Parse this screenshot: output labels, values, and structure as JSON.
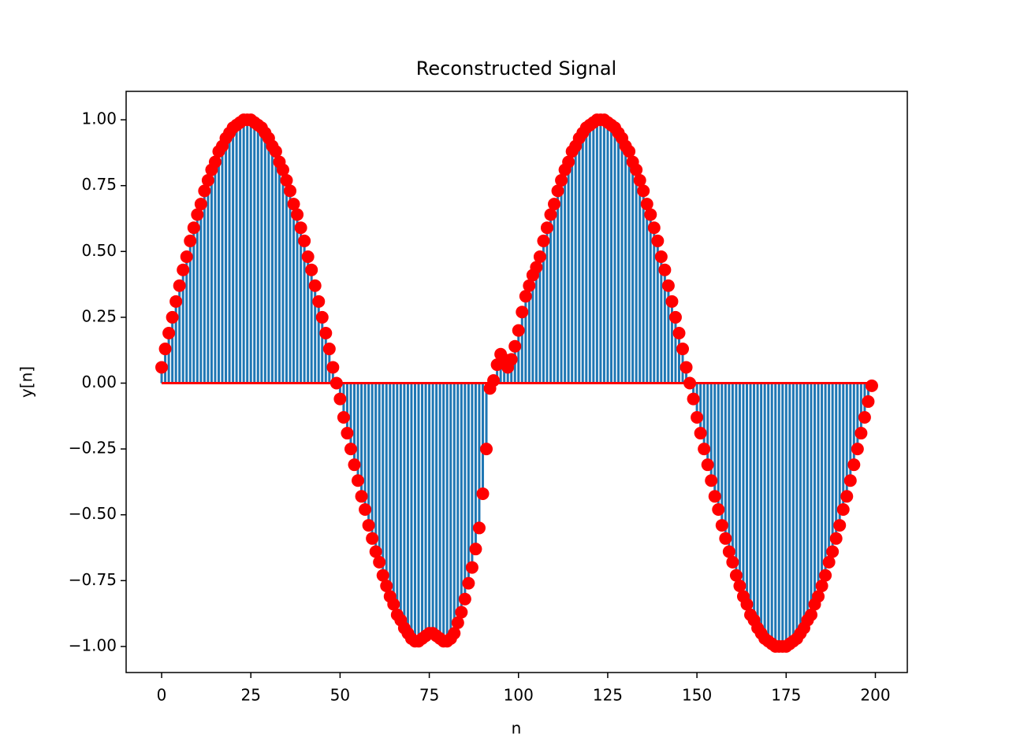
{
  "chart_data": {
    "type": "stem",
    "title": "Reconstructed Signal",
    "x_label": "n",
    "y_label": "y[n]",
    "stem_color": "#1f77b4",
    "marker_color": "#ff0000",
    "baseline_color": "#ff0000",
    "x": [
      0,
      1,
      2,
      3,
      4,
      5,
      6,
      7,
      8,
      9,
      10,
      11,
      12,
      13,
      14,
      15,
      16,
      17,
      18,
      19,
      20,
      21,
      22,
      23,
      24,
      25,
      26,
      27,
      28,
      29,
      30,
      31,
      32,
      33,
      34,
      35,
      36,
      37,
      38,
      39,
      40,
      41,
      42,
      43,
      44,
      45,
      46,
      47,
      48,
      49,
      50,
      51,
      52,
      53,
      54,
      55,
      56,
      57,
      58,
      59,
      60,
      61,
      62,
      63,
      64,
      65,
      66,
      67,
      68,
      69,
      70,
      71,
      72,
      73,
      74,
      75,
      76,
      77,
      78,
      79,
      80,
      81,
      82,
      83,
      84,
      85,
      86,
      87,
      88,
      89,
      90,
      91,
      92,
      93,
      94,
      95,
      96,
      97,
      98,
      99,
      100,
      101,
      102,
      103,
      104,
      105,
      106,
      107,
      108,
      109,
      110,
      111,
      112,
      113,
      114,
      115,
      116,
      117,
      118,
      119,
      120,
      121,
      122,
      123,
      124,
      125,
      126,
      127,
      128,
      129,
      130,
      131,
      132,
      133,
      134,
      135,
      136,
      137,
      138,
      139,
      140,
      141,
      142,
      143,
      144,
      145,
      146,
      147,
      148,
      149,
      150,
      151,
      152,
      153,
      154,
      155,
      156,
      157,
      158,
      159,
      160,
      161,
      162,
      163,
      164,
      165,
      166,
      167,
      168,
      169,
      170,
      171,
      172,
      173,
      174,
      175,
      176,
      177,
      178,
      179,
      180,
      181,
      182,
      183,
      184,
      185,
      186,
      187,
      188,
      189,
      190,
      191,
      192,
      193,
      194,
      195,
      196,
      197,
      198,
      199
    ],
    "values": [
      0.06,
      0.13,
      0.19,
      0.25,
      0.31,
      0.37,
      0.43,
      0.48,
      0.54,
      0.59,
      0.64,
      0.68,
      0.73,
      0.77,
      0.81,
      0.84,
      0.88,
      0.9,
      0.93,
      0.95,
      0.97,
      0.98,
      0.99,
      1,
      1,
      1,
      0.99,
      0.98,
      0.97,
      0.95,
      0.93,
      0.9,
      0.88,
      0.84,
      0.81,
      0.77,
      0.73,
      0.68,
      0.64,
      0.59,
      0.54,
      0.48,
      0.43,
      0.37,
      0.31,
      0.25,
      0.19,
      0.13,
      0.06,
      0,
      -0.06,
      -0.13,
      -0.19,
      -0.25,
      -0.31,
      -0.37,
      -0.43,
      -0.48,
      -0.54,
      -0.59,
      -0.64,
      -0.68,
      -0.73,
      -0.77,
      -0.81,
      -0.84,
      -0.88,
      -0.9,
      -0.93,
      -0.95,
      -0.97,
      -0.98,
      -0.98,
      -0.97,
      -0.96,
      -0.95,
      -0.95,
      -0.96,
      -0.97,
      -0.98,
      -0.98,
      -0.97,
      -0.95,
      -0.91,
      -0.87,
      -0.82,
      -0.76,
      -0.7,
      -0.63,
      -0.55,
      -0.42,
      -0.25,
      -0.02,
      0.01,
      0.07,
      0.11,
      0.09,
      0.06,
      0.09,
      0.14,
      0.2,
      0.27,
      0.33,
      0.37,
      0.41,
      0.44,
      0.48,
      0.54,
      0.59,
      0.64,
      0.68,
      0.73,
      0.77,
      0.81,
      0.84,
      0.88,
      0.9,
      0.93,
      0.95,
      0.97,
      0.98,
      0.99,
      1,
      1,
      1,
      0.99,
      0.98,
      0.97,
      0.95,
      0.93,
      0.9,
      0.88,
      0.84,
      0.81,
      0.77,
      0.73,
      0.68,
      0.64,
      0.59,
      0.54,
      0.48,
      0.43,
      0.37,
      0.31,
      0.25,
      0.19,
      0.13,
      0.06,
      0,
      -0.06,
      -0.13,
      -0.19,
      -0.25,
      -0.31,
      -0.37,
      -0.43,
      -0.48,
      -0.54,
      -0.59,
      -0.64,
      -0.68,
      -0.73,
      -0.77,
      -0.81,
      -0.84,
      -0.88,
      -0.9,
      -0.93,
      -0.95,
      -0.97,
      -0.98,
      -0.99,
      -1,
      -1,
      -1,
      -1,
      -0.99,
      -0.98,
      -0.97,
      -0.95,
      -0.93,
      -0.9,
      -0.88,
      -0.84,
      -0.81,
      -0.77,
      -0.73,
      -0.68,
      -0.64,
      -0.59,
      -0.54,
      -0.48,
      -0.43,
      -0.37,
      -0.31,
      -0.25,
      -0.19,
      -0.13,
      -0.07,
      -0.01
    ],
    "xlim": [
      -9.95,
      208.95
    ],
    "ylim": [
      -1.099,
      1.108
    ],
    "xticks": [
      0,
      25,
      50,
      75,
      100,
      125,
      150,
      175,
      200
    ],
    "yticks": [
      {
        "value": 1,
        "label": "1.00"
      },
      {
        "value": 0.75,
        "label": "0.75"
      },
      {
        "value": 0.5,
        "label": "0.50"
      },
      {
        "value": 0.25,
        "label": "0.25"
      },
      {
        "value": 0,
        "label": "0.00"
      },
      {
        "value": -0.25,
        "label": "−0.25"
      },
      {
        "value": -0.5,
        "label": "−0.50"
      },
      {
        "value": -0.75,
        "label": "−0.75"
      },
      {
        "value": -1,
        "label": "−1.00"
      }
    ],
    "grid": false
  }
}
